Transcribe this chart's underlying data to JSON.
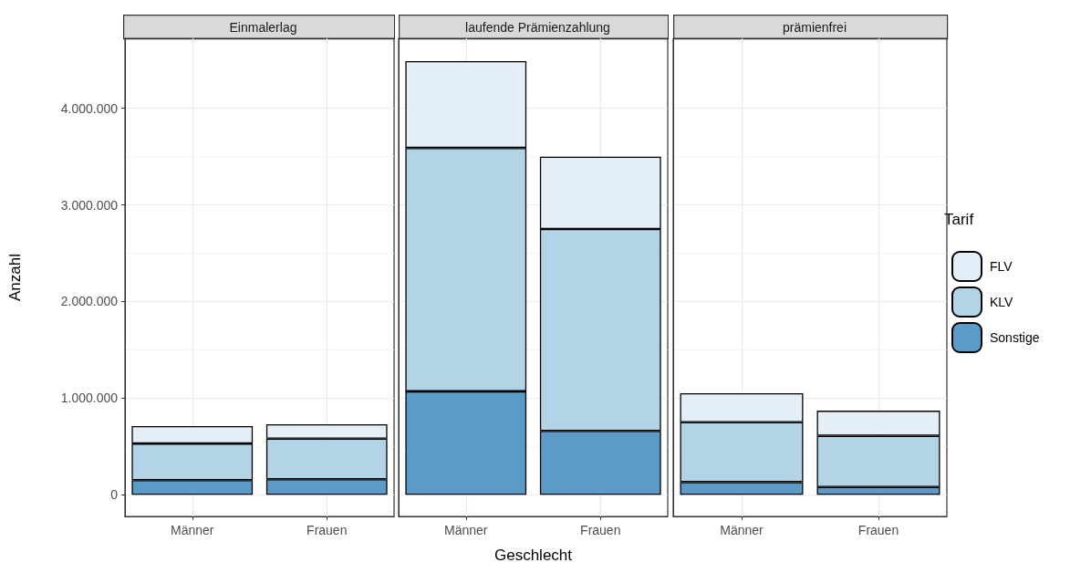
{
  "chart_data": [
    {
      "type": "bar",
      "stacked": true,
      "title": "Einmalerlag",
      "ylabel": "Anzahl",
      "categories": [
        "Männer",
        "Frauen"
      ],
      "series": [
        {
          "color": "#5a9bc8",
          "values": [
            150000,
            160000
          ]
        },
        {
          "color": "#b2d4e6",
          "values": [
            380000,
            420000
          ]
        },
        {
          "color": "#e3eef7",
          "values": [
            180000,
            150000
          ]
        }
      ],
      "ylim": [
        -225000,
        4725000
      ],
      "yticks": [
        {
          "value": 0,
          "label": "0"
        },
        {
          "value": 1000000,
          "label": "1.000.000"
        },
        {
          "value": 2000000,
          "label": "2.000.000"
        },
        {
          "value": 3000000,
          "label": "3.000.000"
        },
        {
          "value": 4000000,
          "label": "4.000.000"
        }
      ],
      "grid": true
    },
    {
      "type": "bar",
      "stacked": true,
      "title": "laufende Prämienzahlung",
      "xlabel": "Geschlecht",
      "categories": [
        "Männer",
        "Frauen"
      ],
      "series": [
        {
          "color": "#5a9bc8",
          "values": [
            1070000,
            660000
          ]
        },
        {
          "color": "#b2d4e6",
          "values": [
            2520000,
            2090000
          ]
        },
        {
          "color": "#e3eef7",
          "values": [
            900000,
            750000
          ]
        }
      ],
      "ylim": [
        -225000,
        4725000
      ],
      "yticks": [
        0,
        1000000,
        2000000,
        3000000,
        4000000
      ],
      "grid": true,
      "tick_labels": "x"
    },
    {
      "type": "bar",
      "stacked": true,
      "title": "prämienfrei",
      "categories": [
        "Männer",
        "Frauen"
      ],
      "series": [
        {
          "name": "Sonstige",
          "color": "#5a9bc8",
          "values": [
            130000,
            80000
          ]
        },
        {
          "name": "KLV",
          "color": "#b2d4e6",
          "values": [
            620000,
            530000
          ]
        },
        {
          "name": "FLV",
          "color": "#e3eef7",
          "values": [
            300000,
            260000
          ]
        }
      ],
      "ylim": [
        -225000,
        4725000
      ],
      "yticks": [
        0,
        1000000,
        2000000,
        3000000,
        4000000
      ],
      "grid": true,
      "tick_labels": "x",
      "legend": "right",
      "legend_title": "Tarif"
    }
  ]
}
